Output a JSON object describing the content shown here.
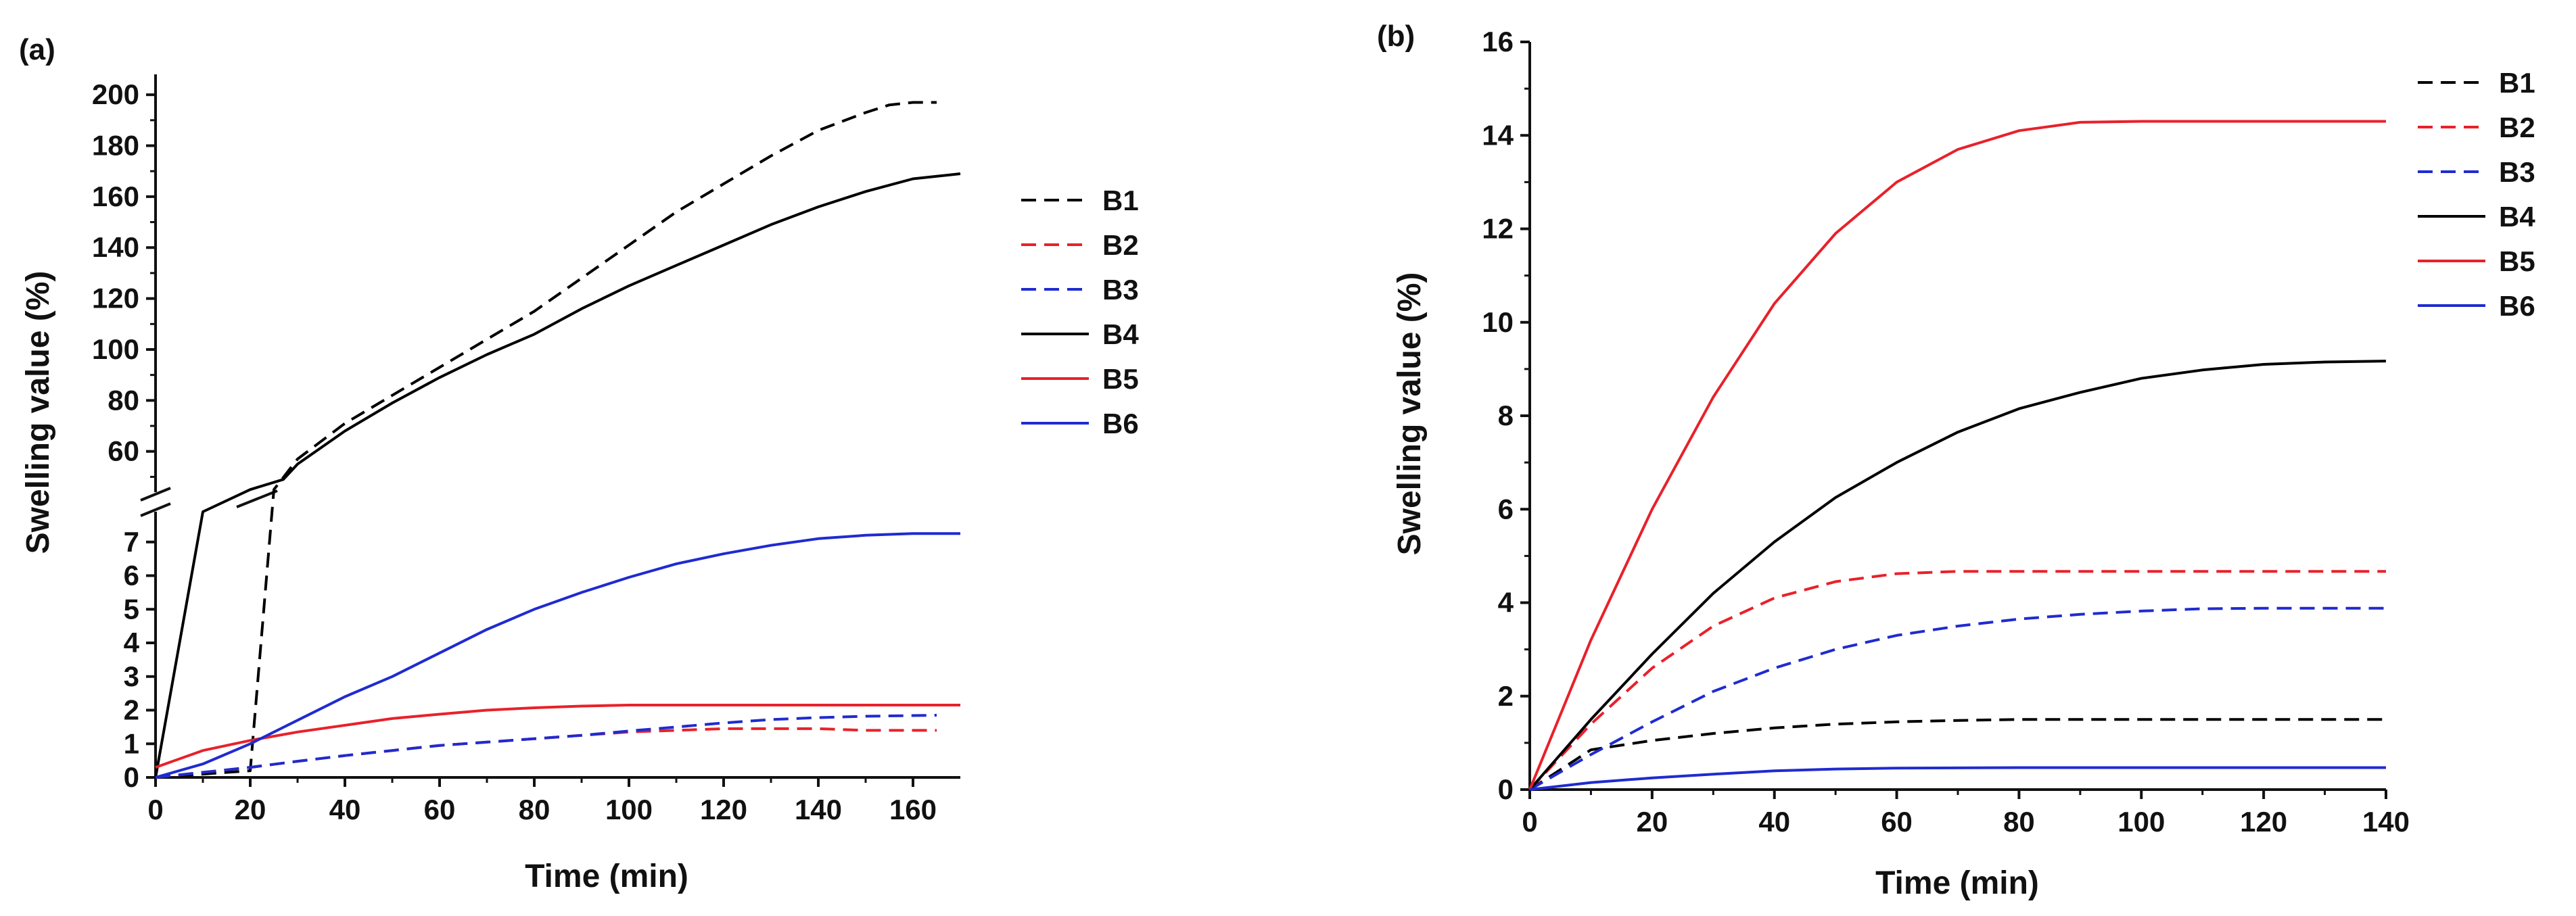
{
  "chart_data": [
    {
      "type": "line",
      "panel_label": "(a)",
      "xlabel": "Time (min)",
      "ylabel": "Swelling value (%)",
      "xlim": [
        0,
        170
      ],
      "xticks": [
        0,
        20,
        40,
        60,
        80,
        100,
        120,
        140,
        160
      ],
      "broken_y_axis": true,
      "ylim_lower": [
        0,
        7.9
      ],
      "yticks_lower": [
        0,
        1,
        2,
        3,
        4,
        5,
        6,
        7
      ],
      "ylim_upper": [
        44,
        208
      ],
      "yticks_upper": [
        60,
        80,
        100,
        120,
        140,
        160,
        180,
        200
      ],
      "legend_position": "right",
      "series": [
        {
          "name": "B1",
          "color": "#000000",
          "dashed": true,
          "x": [
            0,
            20,
            25,
            30,
            40,
            50,
            60,
            70,
            80,
            90,
            100,
            110,
            120,
            130,
            140,
            150,
            155,
            160,
            165
          ],
          "y": [
            0,
            0.2,
            45,
            57,
            71,
            82,
            93,
            104,
            115,
            128,
            141,
            154,
            165,
            176,
            186,
            193,
            196,
            197,
            197
          ]
        },
        {
          "name": "B2",
          "color": "#e8212a",
          "dashed": true,
          "x": [
            0,
            10,
            20,
            30,
            40,
            50,
            60,
            70,
            80,
            90,
            100,
            110,
            120,
            130,
            140,
            150,
            165
          ],
          "y": [
            0,
            0.15,
            0.3,
            0.48,
            0.65,
            0.8,
            0.95,
            1.05,
            1.15,
            1.25,
            1.35,
            1.4,
            1.45,
            1.45,
            1.45,
            1.4,
            1.4
          ]
        },
        {
          "name": "B3",
          "color": "#1f2bd0",
          "dashed": true,
          "x": [
            0,
            10,
            20,
            30,
            40,
            50,
            60,
            70,
            80,
            90,
            100,
            110,
            120,
            130,
            140,
            150,
            165
          ],
          "y": [
            0,
            0.15,
            0.3,
            0.48,
            0.65,
            0.8,
            0.95,
            1.05,
            1.15,
            1.25,
            1.38,
            1.5,
            1.62,
            1.72,
            1.78,
            1.82,
            1.85
          ]
        },
        {
          "name": "B4",
          "color": "#000000",
          "dashed": false,
          "x": [
            0,
            10,
            20,
            27,
            30,
            40,
            50,
            60,
            70,
            80,
            90,
            100,
            110,
            120,
            130,
            140,
            150,
            160,
            170
          ],
          "y": [
            0,
            7.9,
            45,
            49,
            55,
            68,
            79,
            89,
            98,
            106,
            116,
            125,
            133,
            141,
            149,
            156,
            162,
            167,
            169
          ]
        },
        {
          "name": "B5",
          "color": "#e8212a",
          "dashed": false,
          "x": [
            0,
            10,
            20,
            30,
            40,
            50,
            60,
            70,
            80,
            90,
            100,
            110,
            120,
            130,
            140,
            150,
            160,
            170
          ],
          "y": [
            0.3,
            0.8,
            1.1,
            1.35,
            1.55,
            1.75,
            1.88,
            2.0,
            2.07,
            2.12,
            2.15,
            2.15,
            2.15,
            2.15,
            2.15,
            2.15,
            2.15,
            2.15
          ]
        },
        {
          "name": "B6",
          "color": "#1f2bd0",
          "dashed": false,
          "x": [
            0,
            10,
            20,
            30,
            40,
            50,
            60,
            70,
            80,
            90,
            100,
            110,
            120,
            130,
            140,
            150,
            160,
            170
          ],
          "y": [
            0,
            0.4,
            1.0,
            1.7,
            2.4,
            3.0,
            3.7,
            4.4,
            5.0,
            5.5,
            5.95,
            6.35,
            6.65,
            6.9,
            7.1,
            7.2,
            7.25,
            7.25
          ]
        }
      ]
    },
    {
      "type": "line",
      "panel_label": "(b)",
      "xlabel": "Time (min)",
      "ylabel": "Swelling value (%)",
      "xlim": [
        0,
        140
      ],
      "ylim": [
        0,
        16
      ],
      "xticks": [
        0,
        20,
        40,
        60,
        80,
        100,
        120,
        140
      ],
      "yticks": [
        0,
        2,
        4,
        6,
        8,
        10,
        12,
        14,
        16
      ],
      "legend_position": "top-right",
      "series": [
        {
          "name": "B1",
          "color": "#000000",
          "dashed": true,
          "x": [
            0,
            10,
            20,
            30,
            40,
            50,
            60,
            70,
            80,
            100,
            120,
            140
          ],
          "y": [
            0,
            0.85,
            1.05,
            1.2,
            1.32,
            1.4,
            1.45,
            1.48,
            1.5,
            1.5,
            1.5,
            1.5
          ]
        },
        {
          "name": "B2",
          "color": "#e8212a",
          "dashed": true,
          "x": [
            0,
            10,
            20,
            30,
            40,
            50,
            60,
            70,
            80,
            100,
            120,
            140
          ],
          "y": [
            0,
            1.4,
            2.6,
            3.5,
            4.1,
            4.45,
            4.62,
            4.67,
            4.67,
            4.67,
            4.67,
            4.67
          ]
        },
        {
          "name": "B3",
          "color": "#1f2bd0",
          "dashed": true,
          "x": [
            0,
            10,
            20,
            30,
            40,
            50,
            60,
            70,
            80,
            90,
            100,
            110,
            120,
            140
          ],
          "y": [
            0,
            0.75,
            1.45,
            2.1,
            2.6,
            3.0,
            3.3,
            3.5,
            3.65,
            3.75,
            3.82,
            3.87,
            3.88,
            3.88
          ]
        },
        {
          "name": "B4",
          "color": "#000000",
          "dashed": false,
          "x": [
            0,
            10,
            20,
            30,
            40,
            50,
            60,
            70,
            80,
            90,
            100,
            110,
            120,
            130,
            140
          ],
          "y": [
            0,
            1.5,
            2.9,
            4.2,
            5.3,
            6.25,
            7.0,
            7.65,
            8.15,
            8.5,
            8.8,
            8.98,
            9.1,
            9.15,
            9.17
          ]
        },
        {
          "name": "B5",
          "color": "#e8212a",
          "dashed": false,
          "x": [
            0,
            10,
            20,
            30,
            40,
            50,
            60,
            70,
            80,
            90,
            100,
            120,
            140
          ],
          "y": [
            0,
            3.2,
            6.0,
            8.4,
            10.4,
            11.9,
            13.0,
            13.7,
            14.1,
            14.28,
            14.3,
            14.3,
            14.3
          ]
        },
        {
          "name": "B6",
          "color": "#1f2bd0",
          "dashed": false,
          "x": [
            0,
            10,
            20,
            30,
            40,
            50,
            60,
            80,
            100,
            120,
            140
          ],
          "y": [
            0,
            0.15,
            0.25,
            0.33,
            0.4,
            0.44,
            0.46,
            0.47,
            0.47,
            0.47,
            0.47
          ]
        }
      ]
    }
  ]
}
